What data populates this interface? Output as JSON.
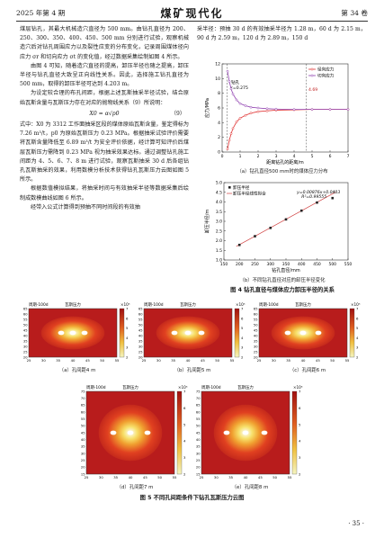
{
  "header": {
    "left": "2025 年第 4 期",
    "center": "煤矿现代化",
    "right": "第 34 卷"
  },
  "left_column": {
    "p1": "煤层钻孔，其最大机械造穴直径为 500 mm。由钻孔直径为 200、250、300、350、400、450、500 mm 分别进行试验，观察机械造穴后对钻孔周围应力以及裂性应变的分布变化，记录周围煤体径向应力 σr 和切向应力 σt 的变化值，经过数据采集绘制如图 4 所示。",
    "p2": "由图 4 可知，随着造穴直径的提高，卸压半径也随之提高，卸压半径与钻孔直径大致呈正向线性关系。因此，选择施工钻孔直径为 500 mm，取得的卸压半径可达到 4.203 m。",
    "p3": "为设定较合理的布孔间距，根据上述瓦斯抽采半径试验，结合原始瓦斯含量与瓦斯压力存在对应的抛物线关系（9）所说明：",
    "formula": "X0 = α√p0",
    "formula_num": "（9）",
    "p4": "式中：X0 为 3312 工作面抽采区段的煤体原始瓦斯含量，鉴定得标为 7.26 m³/t，p0 为原始瓦斯压力 0.23 MPa。根据抽采试验评价需要将瓦斯含量降低至 6.89 m³/t 为安全评价依据，经计算可知评价后煤层瓦斯压力需降到 0.23 MPa 视为抽采效果达标。通过调整钻孔施工间距为 4、5、6、7、8 m 进行试验，观察瓦斯抽采 30 d 后各组钻孔瓦斯抽采的效果，利用数模分析技术获得钻孔瓦斯压力云图如图 5 所示。",
    "p5": "根据数值模拟结果，将抽采时间与有效抽采半径等数据采集后绘制成数模曲线如图 6 所示。",
    "p6": "经带入公式计算得到预抽不同时间段的有效抽"
  },
  "right_column": {
    "p1": "采半径：预抽 30 d 的有效抽采半径为 1.28 m，60 d 为 2.15 m，90 d 为 2.59 m，120 d 为 2.89 m，150 d"
  },
  "figure4": {
    "title": "图 4   钻孔直径与煤体应力卸压半径的关系",
    "chart_a": {
      "type": "line",
      "title": "",
      "xlabel": "距离钻孔的距离/m",
      "ylabel": "应力/MPa",
      "caption": "（a）钻孔直径500 mm时的煤体应力分布",
      "legend": [
        "径向应力",
        "切向应力"
      ],
      "annotations": [
        "钻孔",
        "r=0.275",
        "4.69"
      ],
      "xlim": [
        0,
        7
      ],
      "ylim": [
        0,
        12
      ],
      "xticks": [
        "0",
        "1",
        "2",
        "3",
        "4",
        "5",
        "6",
        "7"
      ],
      "yticks": [
        "0",
        "2",
        "4",
        "6",
        "8",
        "10",
        "12"
      ],
      "series": [
        {
          "name": "径向应力",
          "color": "#e03030",
          "x": [
            0.3,
            0.4,
            0.5,
            0.6,
            0.8,
            1.0,
            1.3,
            1.6,
            2.0,
            2.5,
            3.0,
            4.0,
            5.0,
            6.0,
            7.0
          ],
          "values": [
            0.4,
            1.6,
            2.5,
            3.2,
            4.1,
            4.6,
            5.0,
            5.3,
            5.5,
            5.6,
            5.7,
            5.75,
            5.8,
            5.8,
            5.8
          ]
        },
        {
          "name": "切向应力",
          "color": "#9040b0",
          "x": [
            0.3,
            0.4,
            0.5,
            0.6,
            0.8,
            1.0,
            1.3,
            1.6,
            2.0,
            2.5,
            3.0,
            4.0,
            5.0,
            6.0,
            7.0
          ],
          "values": [
            11.0,
            9.6,
            8.6,
            7.9,
            7.1,
            6.6,
            6.3,
            6.1,
            6.0,
            5.9,
            5.85,
            5.8,
            5.8,
            5.8,
            5.8
          ]
        }
      ]
    },
    "chart_b": {
      "type": "scatter",
      "title": "",
      "xlabel": "钻孔直径/mm",
      "ylabel": "卸压半径/m",
      "caption": "（b）不同钻孔直径对应的卸压半径变化",
      "legend": [
        "卸压半径",
        "卸压半径线性拟合"
      ],
      "equation": "y=0.00876x+0.0403",
      "r2": "R²=0.99555",
      "xlim": [
        150,
        550
      ],
      "ylim": [
        1.0,
        5.0
      ],
      "xticks": [
        "150",
        "200",
        "250",
        "300",
        "350",
        "400",
        "450",
        "500",
        "550"
      ],
      "yticks": [
        "1.0",
        "1.5",
        "2.0",
        "2.5",
        "3.0",
        "3.5",
        "4.0",
        "4.5",
        "5.0"
      ],
      "x": [
        200,
        250,
        300,
        350,
        400,
        450,
        500
      ],
      "values": [
        1.78,
        2.23,
        2.66,
        3.1,
        3.55,
        3.97,
        4.2
      ],
      "fit": {
        "slope": 0.00876,
        "intercept": 0.0403
      }
    }
  },
  "figure5": {
    "title": "图 5   不同孔间距条件下钻孔瓦斯压力云图",
    "plot_label": "周期-100d",
    "plot_title": "瓦斯压力",
    "scale_label": "×10⁵",
    "colorbar_ticks": [
      "7",
      "6",
      "5",
      "4",
      "3",
      "2"
    ],
    "xticks": [
      "25",
      "30",
      "35",
      "40",
      "45",
      "50",
      "55"
    ],
    "yticks_small": [
      "65",
      "60",
      "55",
      "50",
      "45",
      "40",
      "35",
      "30",
      "25",
      "20"
    ],
    "yticks_large": [
      "75",
      "70",
      "65",
      "60",
      "55",
      "50",
      "45",
      "40",
      "35",
      "30",
      "25",
      "20",
      "15"
    ],
    "panels": [
      {
        "caption": "（a）孔间距4 m",
        "holes": 3,
        "spacing": 4
      },
      {
        "caption": "（b）孔间距5 m",
        "holes": 3,
        "spacing": 5
      },
      {
        "caption": "（c）孔间距6 m",
        "holes": 3,
        "spacing": 6
      },
      {
        "caption": "（d）孔间距7 m",
        "holes": 3,
        "spacing": 7
      },
      {
        "caption": "（e）孔间距8 m",
        "holes": 3,
        "spacing": 8
      }
    ]
  },
  "footer": "· 35 ·"
}
